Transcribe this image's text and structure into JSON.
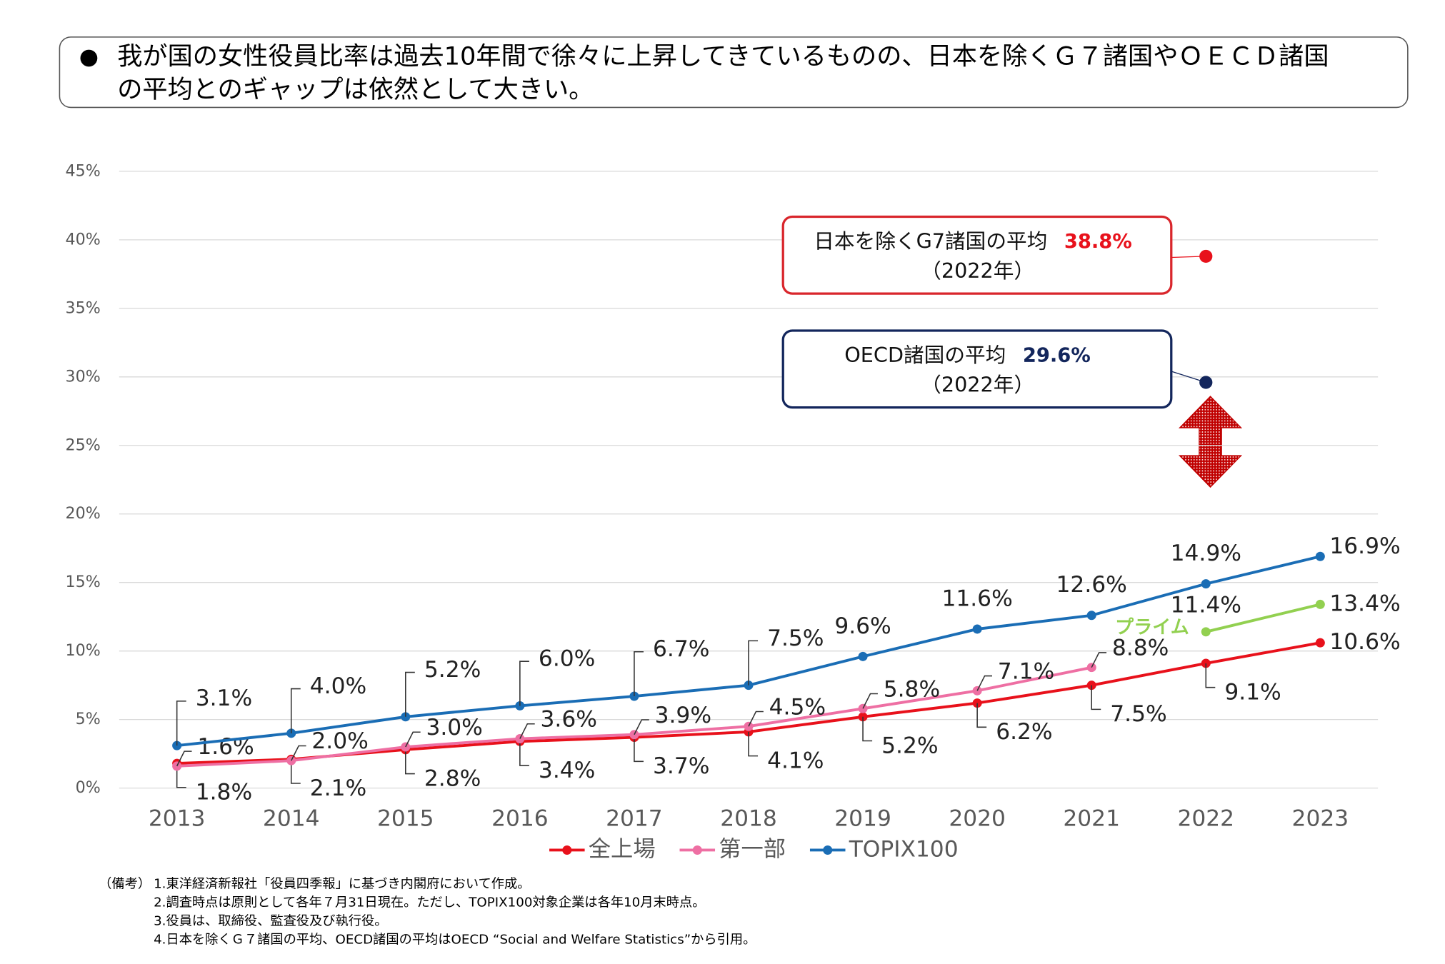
{
  "header": {
    "bullet": "●",
    "lines": [
      "我が国の女性役員比率は過去10年間で徐々に上昇してきているものの、日本を除くＧ７諸国やＯＥＣＤ諸国",
      "の平均とのギャップは依然として大きい。"
    ]
  },
  "chart_data": {
    "type": "line",
    "categories": [
      "2013",
      "2014",
      "2015",
      "2016",
      "2017",
      "2018",
      "2019",
      "2020",
      "2021",
      "2022",
      "2023"
    ],
    "ylim": [
      0,
      45
    ],
    "yticks": [
      {
        "value": 0,
        "label": "0%"
      },
      {
        "value": 5,
        "label": "5%"
      },
      {
        "value": 10,
        "label": "10%"
      },
      {
        "value": 15,
        "label": "15%"
      },
      {
        "value": 20,
        "label": "20%"
      },
      {
        "value": 25,
        "label": "25%"
      },
      {
        "value": 30,
        "label": "30%"
      },
      {
        "value": 35,
        "label": "35%"
      },
      {
        "value": 40,
        "label": "40%"
      },
      {
        "value": 45,
        "label": "45%"
      }
    ],
    "grid": true,
    "legend": "bottom",
    "series": [
      {
        "name": "全上場",
        "color": "#e8111b",
        "legend": true,
        "values": [
          1.8,
          2.1,
          2.8,
          3.4,
          3.7,
          4.1,
          5.2,
          6.2,
          7.5,
          9.1,
          10.6
        ],
        "value_labels": [
          "1.8%",
          "2.1%",
          "2.8%",
          "3.4%",
          "3.7%",
          "4.1%",
          "5.2%",
          "6.2%",
          "7.5%",
          "9.1%",
          "10.6%"
        ]
      },
      {
        "name": "第一部",
        "color": "#ee6fa3",
        "legend": true,
        "values": [
          1.6,
          2.0,
          3.0,
          3.6,
          3.9,
          4.5,
          5.8,
          7.1,
          8.8,
          null,
          null
        ],
        "value_labels": [
          "1.6%",
          "2.0%",
          "3.0%",
          "3.6%",
          "3.9%",
          "4.5%",
          "5.8%",
          "7.1%",
          "8.8%",
          null,
          null
        ]
      },
      {
        "name": "TOPIX100",
        "color": "#1a6db5",
        "legend": true,
        "values": [
          3.1,
          4.0,
          5.2,
          6.0,
          6.7,
          7.5,
          9.6,
          11.6,
          12.6,
          14.9,
          16.9
        ],
        "value_labels": [
          "3.1%",
          "4.0%",
          "5.2%",
          "6.0%",
          "6.7%",
          "7.5%",
          "9.6%",
          "11.6%",
          "12.6%",
          "14.9%",
          "16.9%"
        ]
      },
      {
        "name": "プライム",
        "color": "#92d050",
        "legend": false,
        "values": [
          null,
          null,
          null,
          null,
          null,
          null,
          null,
          null,
          null,
          11.4,
          13.4
        ],
        "value_labels": [
          null,
          null,
          null,
          null,
          null,
          null,
          null,
          null,
          null,
          "11.4%",
          "13.4%"
        ]
      }
    ],
    "callouts": [
      {
        "label": "日本を除くG7諸国の平均",
        "value": 38.8,
        "value_label": "38.8%",
        "year_label": "（2022年）",
        "category": 9,
        "color": "#e8111b",
        "box_color": "#d9262c",
        "text_color": "#e8111b"
      },
      {
        "label": "OECD諸国の平均",
        "value": 29.6,
        "value_label": "29.6%",
        "year_label": "（2022年）",
        "category": 9,
        "color": "#13265c",
        "box_color": "#13265c",
        "text_color": "#13265c"
      }
    ]
  },
  "notes": {
    "head": "（備考）",
    "items": [
      "1.東洋経済新報社「役員四季報」に基づき内閣府において作成。",
      "2.調査時点は原則として各年７月31日現在。ただし、TOPIX100対象企業は各年10月末時点。",
      "3.役員は、取締役、監査役及び執行役。",
      "4.日本を除くＧ７諸国の平均、OECD諸国の平均はOECD “Social and Welfare Statistics”から引用。"
    ]
  }
}
